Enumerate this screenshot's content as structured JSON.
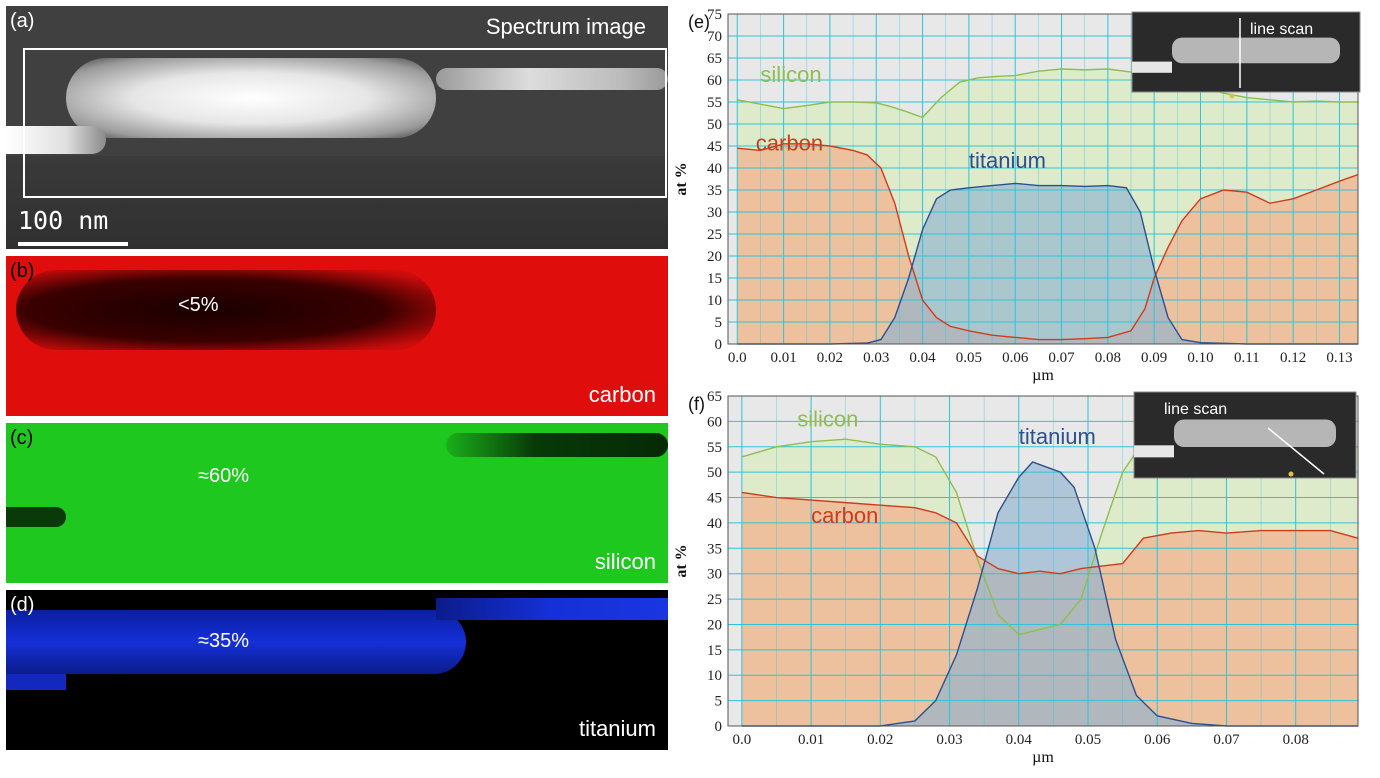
{
  "panels": {
    "a": {
      "label": "(a)",
      "title": "Spectrum image",
      "scale_bar": "100 nm"
    },
    "b": {
      "label": "(b)",
      "element": "carbon",
      "value": "<5%"
    },
    "c": {
      "label": "(c)",
      "element": "silicon",
      "value": "≈60%"
    },
    "d": {
      "label": "(d)",
      "element": "titanium",
      "value": "≈35%"
    }
  },
  "colors": {
    "silicon": "#8cbf4f",
    "carbon": "#d23a1c",
    "titanium": "#2c4f8f",
    "silicon_fill": "#dcebc6",
    "carbon_fill": "#f0b997",
    "titanium_fill": "#8fb4d0",
    "grid": "#2ec4d8",
    "plot_bg": "#e8e8e8"
  },
  "chart_data": [
    {
      "type": "area",
      "panel_label": "(e)",
      "inset_label": "line scan",
      "xlabel": "µm",
      "ylabel": "at %",
      "xlim": [
        -0.002,
        0.134
      ],
      "ylim": [
        0,
        75
      ],
      "xticks": [
        "0.0",
        "0.01",
        "0.02",
        "0.03",
        "0.04",
        "0.05",
        "0.06",
        "0.07",
        "0.08",
        "0.09",
        "0.10",
        "0.11",
        "0.12",
        "0.13"
      ],
      "yticks": [
        "0",
        "5",
        "10",
        "15",
        "20",
        "25",
        "30",
        "35",
        "40",
        "45",
        "50",
        "55",
        "60",
        "65",
        "70",
        "75"
      ],
      "grid": true,
      "series": [
        {
          "name": "silicon",
          "x": [
            0,
            0.005,
            0.01,
            0.015,
            0.02,
            0.025,
            0.03,
            0.033,
            0.036,
            0.04,
            0.044,
            0.048,
            0.052,
            0.056,
            0.06,
            0.065,
            0.07,
            0.075,
            0.08,
            0.085,
            0.088,
            0.092,
            0.096,
            0.1,
            0.105,
            0.11,
            0.115,
            0.12,
            0.125,
            0.13,
            0.134
          ],
          "values": [
            55.5,
            54.5,
            53.5,
            54.2,
            55,
            55,
            54.8,
            54,
            53,
            51.5,
            56,
            59.5,
            60.5,
            60.8,
            61,
            62,
            62.5,
            62.3,
            62.5,
            61.8,
            61,
            59.8,
            59.2,
            58.5,
            57,
            56,
            55.5,
            55,
            55.2,
            55,
            55
          ]
        },
        {
          "name": "carbon",
          "x": [
            0,
            0.005,
            0.01,
            0.015,
            0.02,
            0.025,
            0.028,
            0.031,
            0.034,
            0.037,
            0.04,
            0.043,
            0.046,
            0.05,
            0.055,
            0.06,
            0.065,
            0.07,
            0.075,
            0.08,
            0.085,
            0.088,
            0.09,
            0.093,
            0.096,
            0.1,
            0.105,
            0.11,
            0.115,
            0.12,
            0.125,
            0.13,
            0.134
          ],
          "values": [
            44.5,
            44,
            45.5,
            45.5,
            45,
            44,
            43,
            40,
            32,
            20,
            10,
            6,
            4,
            3,
            2,
            1.5,
            1,
            1,
            1.2,
            1.5,
            3,
            8,
            15,
            22,
            28,
            33,
            35,
            34.5,
            32,
            33,
            35,
            37,
            38.5
          ]
        },
        {
          "name": "titanium",
          "x": [
            0,
            0.01,
            0.02,
            0.028,
            0.031,
            0.034,
            0.037,
            0.04,
            0.043,
            0.046,
            0.05,
            0.055,
            0.06,
            0.065,
            0.07,
            0.075,
            0.08,
            0.084,
            0.087,
            0.09,
            0.093,
            0.096,
            0.1,
            0.11,
            0.12,
            0.134
          ],
          "values": [
            0,
            0,
            0,
            0.2,
            1,
            6,
            15,
            26,
            33,
            35,
            35.5,
            36,
            36.5,
            36,
            36,
            35.8,
            36,
            35.5,
            30,
            17,
            6,
            1,
            0.3,
            0,
            0,
            0
          ]
        }
      ]
    },
    {
      "type": "area",
      "panel_label": "(f)",
      "inset_label": "line scan",
      "xlabel": "µm",
      "ylabel": "at %",
      "xlim": [
        -0.002,
        0.089
      ],
      "ylim": [
        0,
        65
      ],
      "xticks": [
        "0.0",
        "0.01",
        "0.02",
        "0.03",
        "0.04",
        "0.05",
        "0.06",
        "0.07",
        "0.08"
      ],
      "yticks": [
        "0",
        "5",
        "10",
        "15",
        "20",
        "25",
        "30",
        "35",
        "40",
        "45",
        "50",
        "55",
        "60",
        "65"
      ],
      "grid": true,
      "series": [
        {
          "name": "silicon",
          "x": [
            0,
            0.005,
            0.01,
            0.015,
            0.02,
            0.025,
            0.028,
            0.031,
            0.034,
            0.037,
            0.04,
            0.043,
            0.046,
            0.049,
            0.052,
            0.055,
            0.058,
            0.062,
            0.066,
            0.07,
            0.075,
            0.08,
            0.085,
            0.089
          ],
          "values": [
            53,
            55,
            56,
            56.5,
            55.5,
            55,
            53,
            46,
            33,
            22,
            18,
            19,
            20,
            25,
            38,
            50,
            56,
            56,
            55,
            55,
            55,
            55,
            55,
            55
          ]
        },
        {
          "name": "carbon",
          "x": [
            0,
            0.005,
            0.01,
            0.015,
            0.02,
            0.025,
            0.028,
            0.031,
            0.034,
            0.037,
            0.04,
            0.043,
            0.046,
            0.049,
            0.052,
            0.055,
            0.058,
            0.062,
            0.066,
            0.07,
            0.075,
            0.08,
            0.085,
            0.089
          ],
          "values": [
            46,
            45,
            44.5,
            44,
            43.5,
            43,
            42,
            40,
            33.5,
            31,
            30,
            30.5,
            30,
            31,
            31.5,
            32,
            37,
            38,
            38.5,
            38,
            38.5,
            38.5,
            38.5,
            37
          ]
        },
        {
          "name": "titanium",
          "x": [
            0,
            0.01,
            0.02,
            0.025,
            0.028,
            0.031,
            0.034,
            0.037,
            0.04,
            0.042,
            0.044,
            0.046,
            0.048,
            0.051,
            0.054,
            0.057,
            0.06,
            0.065,
            0.07,
            0.08,
            0.089
          ],
          "values": [
            0,
            0,
            0,
            1,
            5,
            14,
            27,
            42,
            49,
            52,
            51,
            50,
            47,
            35,
            17,
            6,
            2,
            0.5,
            0,
            0,
            0
          ]
        }
      ]
    }
  ]
}
